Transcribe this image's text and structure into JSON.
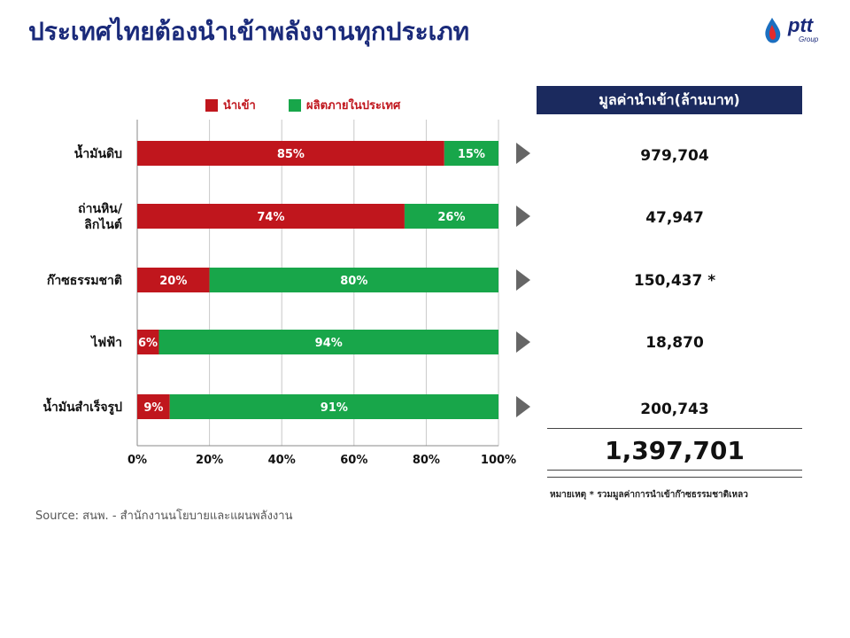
{
  "title": "ประเทศไทยต้องนำเข้าพลังงานทุกประเภท",
  "logo": {
    "text": "ptt",
    "subtext": "Group"
  },
  "legend": [
    {
      "label": "นำเข้า",
      "color": "#c0161d"
    },
    {
      "label": "ผลิตภายในประเทศ",
      "color": "#18a64a"
    }
  ],
  "chart_data": {
    "type": "bar",
    "orientation": "horizontal",
    "stacked": true,
    "categories": [
      "น้ำมันดิบ",
      "ถ่านหิน/\nลิกไนต์",
      "ก๊าซธรรมชาติ",
      "ไฟฟ้า",
      "น้ำมันสำเร็จรูป"
    ],
    "series": [
      {
        "name": "นำเข้า",
        "values": [
          85,
          74,
          20,
          6,
          9
        ],
        "labels": [
          "85%",
          "74%",
          "20%",
          "6%",
          "9%"
        ],
        "color": "#c0161d"
      },
      {
        "name": "ผลิตภายในประเทศ",
        "values": [
          15,
          26,
          80,
          94,
          91
        ],
        "labels": [
          "15%",
          "26%",
          "80%",
          "94%",
          "91%"
        ],
        "color": "#18a64a"
      }
    ],
    "xlim": [
      0,
      100
    ],
    "xticks": [
      "0%",
      "20%",
      "40%",
      "60%",
      "80%",
      "100%"
    ],
    "grid": true
  },
  "value_table": {
    "header": "มูลค่านำเข้า(ล้านบาท)",
    "values": [
      "979,704",
      "47,947",
      "150,437 *",
      "18,870",
      "200,743"
    ],
    "total": "1,397,701",
    "note": "หมายเหตุ * รวมมูลค่าการนำเข้าก๊าซธรรมชาติเหลว"
  },
  "source": "Source: สนพ. - สำนักงานนโยบายและแผนพลังงาน"
}
